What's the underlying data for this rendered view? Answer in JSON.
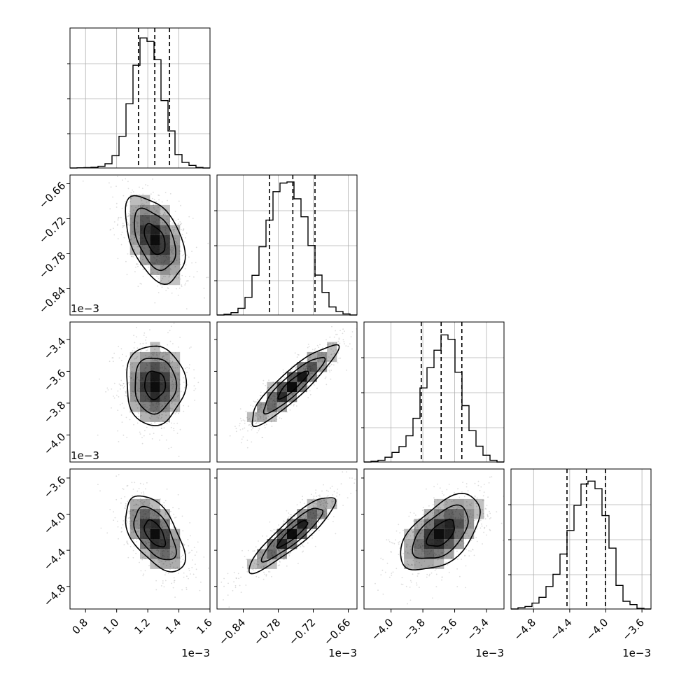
{
  "chart_data": {
    "type": "corner",
    "parameters": 4,
    "dashed_quantiles": [
      0.16,
      0.5,
      0.84
    ],
    "grid": true,
    "contour_levels": 3,
    "sample_points": "scatter",
    "axes": [
      {
        "ticks": [
          "0.8",
          "1.0",
          "1.2",
          "1.4",
          "1.6"
        ],
        "ticks_values": [
          0.8,
          1.0,
          1.2,
          1.4,
          1.6
        ],
        "range": [
          0.7,
          1.6
        ],
        "offset": "1e−3",
        "histogram": {
          "bin_edges": [
            0.7,
            0.745,
            0.79,
            0.835,
            0.88,
            0.925,
            0.97,
            1.015,
            1.06,
            1.105,
            1.15,
            1.195,
            1.24,
            1.285,
            1.33,
            1.375,
            1.42,
            1.465,
            1.51,
            1.555,
            1.6
          ],
          "counts": [
            0,
            1,
            2,
            4,
            9,
            23,
            67,
            172,
            349,
            558,
            706,
            687,
            588,
            366,
            201,
            73,
            30,
            14,
            3,
            0
          ],
          "ymax": 760
        },
        "quantiles": [
          1.14,
          1.245,
          1.34
        ]
      },
      {
        "ticks": [
          "−0.84",
          "−0.78",
          "−0.72",
          "−0.66"
        ],
        "ticks_values": [
          -0.84,
          -0.78,
          -0.72,
          -0.66
        ],
        "range": [
          -0.885,
          -0.645
        ],
        "offset": "1e−3",
        "histogram": {
          "bin_edges": [
            -0.885,
            -0.873,
            -0.861,
            -0.849,
            -0.837,
            -0.825,
            -0.813,
            -0.801,
            -0.789,
            -0.777,
            -0.765,
            -0.753,
            -0.741,
            -0.729,
            -0.717,
            -0.705,
            -0.693,
            -0.681,
            -0.669,
            -0.657,
            -0.645
          ],
          "counts": [
            0,
            4,
            12,
            35,
            92,
            207,
            356,
            495,
            643,
            688,
            694,
            606,
            512,
            362,
            208,
            118,
            42,
            18,
            6,
            0
          ],
          "ymax": 730
        },
        "quantiles": [
          -0.795,
          -0.755,
          -0.717
        ]
      },
      {
        "ticks": [
          "−4.0",
          "−3.8",
          "−3.6",
          "−3.4"
        ],
        "ticks_values": [
          -4.0,
          -3.8,
          -3.6,
          -3.4
        ],
        "range": [
          -4.17,
          -3.29
        ],
        "offset": "1e−3",
        "histogram": {
          "bin_edges": [
            -4.17,
            -4.126,
            -4.082,
            -4.038,
            -3.994,
            -3.95,
            -3.906,
            -3.862,
            -3.818,
            -3.774,
            -3.73,
            -3.686,
            -3.642,
            -3.598,
            -3.554,
            -3.51,
            -3.466,
            -3.422,
            -3.378,
            -3.334,
            -3.29
          ],
          "counts": [
            0,
            4,
            9,
            26,
            52,
            84,
            142,
            237,
            402,
            512,
            607,
            690,
            666,
            487,
            306,
            170,
            86,
            37,
            9,
            0
          ],
          "ymax": 760
        },
        "quantiles": [
          -3.81,
          -3.685,
          -3.555
        ]
      },
      {
        "ticks": [
          "−4.8",
          "−4.4",
          "−4.0",
          "−3.6"
        ],
        "ticks_values": [
          -4.8,
          -4.4,
          -4.0,
          -3.6
        ],
        "range": [
          -5.05,
          -3.5
        ],
        "offset": "1e−3",
        "histogram": {
          "bin_edges": [
            -5.05,
            -4.9725,
            -4.895,
            -4.8175,
            -4.74,
            -4.6625,
            -4.585,
            -4.5075,
            -4.43,
            -4.3525,
            -4.275,
            -4.1975,
            -4.12,
            -4.0425,
            -3.965,
            -3.8875,
            -3.81,
            -3.7325,
            -3.655,
            -3.5775,
            -3.5
          ],
          "counts": [
            0,
            6,
            12,
            28,
            56,
            108,
            166,
            263,
            376,
            496,
            598,
            612,
            576,
            447,
            291,
            113,
            37,
            21,
            3,
            0
          ],
          "ymax": 670
        },
        "quantiles": [
          -4.43,
          -4.215,
          -4.005
        ]
      }
    ],
    "pairs": [
      {
        "row": 1,
        "col": 0,
        "mean": [
          1.245,
          -0.755
        ],
        "sd": [
          0.095,
          0.037
        ],
        "rho": -0.45
      },
      {
        "row": 2,
        "col": 0,
        "mean": [
          1.245,
          -3.685
        ],
        "sd": [
          0.095,
          0.125
        ],
        "rho": 0.0
      },
      {
        "row": 2,
        "col": 1,
        "mean": [
          -0.755,
          -3.685
        ],
        "sd": [
          0.037,
          0.125
        ],
        "rho": 0.9
      },
      {
        "row": 3,
        "col": 0,
        "mean": [
          1.245,
          -4.215
        ],
        "sd": [
          0.095,
          0.21
        ],
        "rho": -0.55
      },
      {
        "row": 3,
        "col": 1,
        "mean": [
          -0.755,
          -4.215
        ],
        "sd": [
          0.037,
          0.21
        ],
        "rho": 0.9
      },
      {
        "row": 3,
        "col": 2,
        "mean": [
          -3.685,
          -4.215
        ],
        "sd": [
          0.125,
          0.21
        ],
        "rho": 0.55
      }
    ],
    "colors": {
      "line": "#000000",
      "grid": "#b0b0b0",
      "density": "#7f7f7f",
      "points": "#9a9a9a"
    }
  }
}
